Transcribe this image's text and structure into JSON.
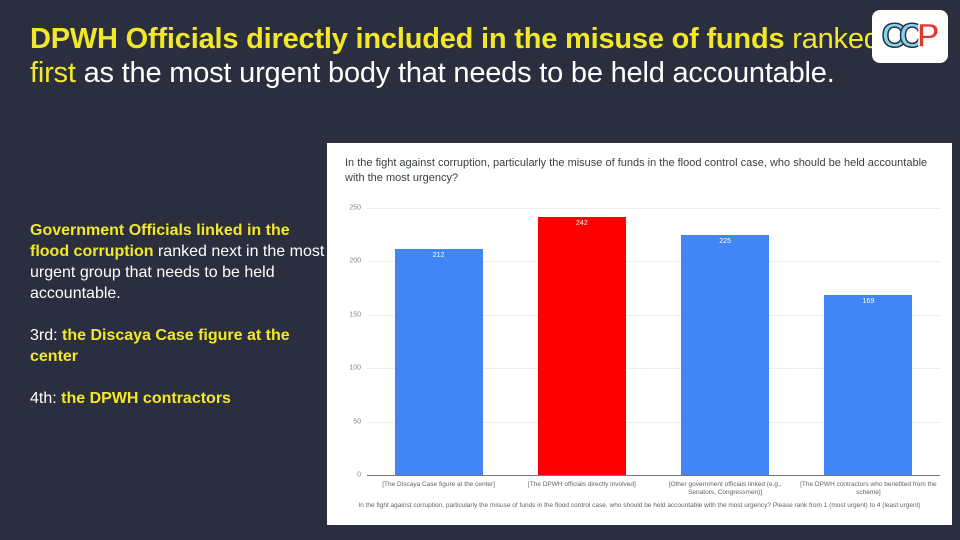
{
  "slide": {
    "background": "#2A2E3E",
    "accent_yellow": "#F2E829",
    "headline": {
      "bold_yellow": "DPWH Officials directly included in the misuse of funds",
      "yellow_regular": " ranked first ",
      "white_rest": "as the most urgent body that needs to be held accountable."
    },
    "sidebar": {
      "para1_bold": "Government Officials linked in the flood corruption",
      "para1_rest": " ranked next in the most urgent group that needs to be held accountable.",
      "para2_prefix": "3rd: ",
      "para2_bold": "the Discaya Case figure at the center",
      "para3_prefix": "4th: ",
      "para3_bold": "the DPWH contractors"
    }
  },
  "logo": {
    "letter1": "C",
    "letter2": "C",
    "letter3": "P",
    "letter_blue": "#85D6E8",
    "letter_red": "#E8362B"
  },
  "chart_data": {
    "type": "bar",
    "title": "In the fight against corruption, particularly the misuse of funds in the flood control case, who should be held accountable with the most urgency?",
    "categories": [
      "[The Discaya Case figure at the center]",
      "[The DPWH officials directly involved]",
      "[Other government officials linked (e.g., Senators, Congressmen)]",
      "[The DPWH contractors who benefited from the scheme]"
    ],
    "values": [
      212,
      242,
      225,
      169
    ],
    "bar_colors": [
      "#4285F4",
      "#FF0000",
      "#4285F4",
      "#4285F4"
    ],
    "value_label_color": "#FFFFFF",
    "ylim": [
      0,
      250
    ],
    "yticks": [
      0,
      50,
      100,
      150,
      200,
      250
    ],
    "grid": true,
    "legend": "none",
    "xlabel_caption": "In the fight against corruption, particularly the misuse of funds in the flood control case, who should be held accountable with the most urgency? Please rank from 1 (most urgent) to 4 (least urgent)"
  }
}
